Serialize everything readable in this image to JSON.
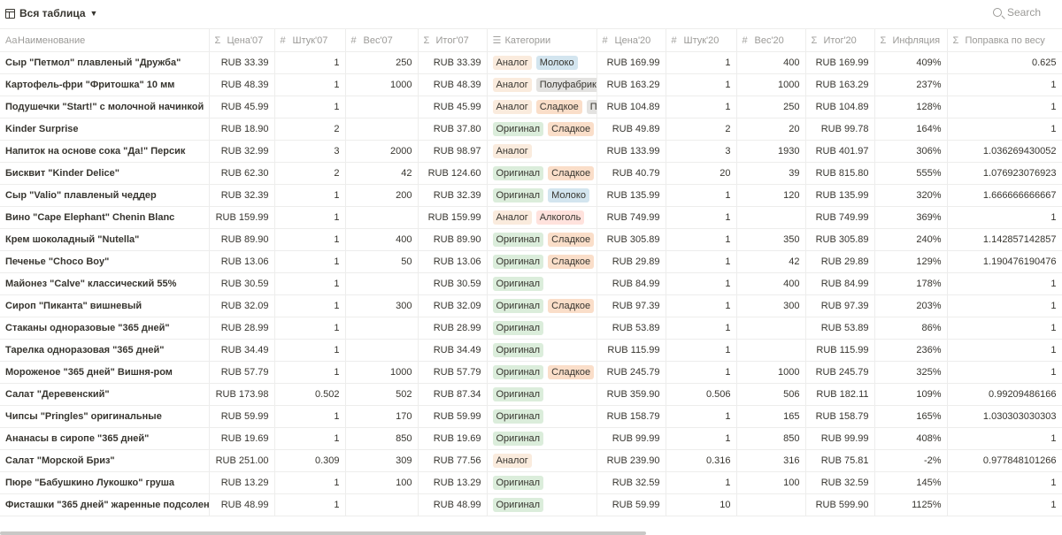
{
  "view": {
    "label": "Вся таблица"
  },
  "search": {
    "label": "Search"
  },
  "columns": [
    {
      "label": "Наименование",
      "icon": "Aa"
    },
    {
      "label": "Цена'07",
      "icon": "Σ"
    },
    {
      "label": "Штук'07",
      "icon": "#"
    },
    {
      "label": "Вес'07",
      "icon": "#"
    },
    {
      "label": "Итог'07",
      "icon": "Σ"
    },
    {
      "label": "Категории",
      "icon": "☰"
    },
    {
      "label": "Цена'20",
      "icon": "#"
    },
    {
      "label": "Штук'20",
      "icon": "#"
    },
    {
      "label": "Вес'20",
      "icon": "#"
    },
    {
      "label": "Итог'20",
      "icon": "Σ"
    },
    {
      "label": "Инфляция",
      "icon": "Σ"
    },
    {
      "label": "Поправка по весу",
      "icon": "Σ"
    }
  ],
  "rows": [
    {
      "name": "Сыр \"Петмол\" плавленый \"Дружба\"",
      "p07": "RUB 33.39",
      "q07": "1",
      "w07": "250",
      "t07": "RUB 33.39",
      "tags": [
        [
          "Аналог",
          "analog"
        ],
        [
          "Молоко",
          "milk"
        ]
      ],
      "p20": "RUB 169.99",
      "q20": "1",
      "w20": "400",
      "t20": "RUB 169.99",
      "infl": "409%",
      "adj": "0.625"
    },
    {
      "name": "Картофель-фри \"Фритошка\" 10 мм",
      "p07": "RUB 48.39",
      "q07": "1",
      "w07": "1000",
      "t07": "RUB 48.39",
      "tags": [
        [
          "Аналог",
          "analog"
        ],
        [
          "Полуфабрик",
          "semi"
        ]
      ],
      "p20": "RUB 163.29",
      "q20": "1",
      "w20": "1000",
      "t20": "RUB 163.29",
      "infl": "237%",
      "adj": "1"
    },
    {
      "name": "Подушечки \"Start!\" с молочной начинкой",
      "p07": "RUB 45.99",
      "q07": "1",
      "w07": "",
      "t07": "RUB 45.99",
      "tags": [
        [
          "Аналог",
          "analog"
        ],
        [
          "Сладкое",
          "sweet"
        ],
        [
          "П",
          "semi"
        ]
      ],
      "p20": "RUB 104.89",
      "q20": "1",
      "w20": "250",
      "t20": "RUB 104.89",
      "infl": "128%",
      "adj": "1"
    },
    {
      "name": "Kinder Surprise",
      "p07": "RUB 18.90",
      "q07": "2",
      "w07": "",
      "t07": "RUB 37.80",
      "tags": [
        [
          "Оригинал",
          "original"
        ],
        [
          "Сладкое",
          "sweet"
        ]
      ],
      "p20": "RUB 49.89",
      "q20": "2",
      "w20": "20",
      "t20": "RUB 99.78",
      "infl": "164%",
      "adj": "1"
    },
    {
      "name": "Напиток на основе сока \"Да!\" Персик",
      "p07": "RUB 32.99",
      "q07": "3",
      "w07": "2000",
      "t07": "RUB 98.97",
      "tags": [
        [
          "Аналог",
          "analog"
        ]
      ],
      "p20": "RUB 133.99",
      "q20": "3",
      "w20": "1930",
      "t20": "RUB 401.97",
      "infl": "306%",
      "adj": "1.036269430052"
    },
    {
      "name": "Бисквит \"Kinder Delice\"",
      "p07": "RUB 62.30",
      "q07": "2",
      "w07": "42",
      "t07": "RUB 124.60",
      "tags": [
        [
          "Оригинал",
          "original"
        ],
        [
          "Сладкое",
          "sweet"
        ]
      ],
      "p20": "RUB 40.79",
      "q20": "20",
      "w20": "39",
      "t20": "RUB 815.80",
      "infl": "555%",
      "adj": "1.076923076923"
    },
    {
      "name": "Сыр \"Valio\" плавленый чеддер",
      "p07": "RUB 32.39",
      "q07": "1",
      "w07": "200",
      "t07": "RUB 32.39",
      "tags": [
        [
          "Оригинал",
          "original"
        ],
        [
          "Молоко",
          "milk"
        ]
      ],
      "p20": "RUB 135.99",
      "q20": "1",
      "w20": "120",
      "t20": "RUB 135.99",
      "infl": "320%",
      "adj": "1.666666666667"
    },
    {
      "name": "Вино \"Cape Elephant\" Chenin Blanc",
      "p07": "RUB 159.99",
      "q07": "1",
      "w07": "",
      "t07": "RUB 159.99",
      "tags": [
        [
          "Аналог",
          "analog"
        ],
        [
          "Алкоголь",
          "alco"
        ]
      ],
      "p20": "RUB 749.99",
      "q20": "1",
      "w20": "",
      "t20": "RUB 749.99",
      "infl": "369%",
      "adj": "1"
    },
    {
      "name": "Крем шоколадный \"Nutella\"",
      "p07": "RUB 89.90",
      "q07": "1",
      "w07": "400",
      "t07": "RUB 89.90",
      "tags": [
        [
          "Оригинал",
          "original"
        ],
        [
          "Сладкое",
          "sweet"
        ]
      ],
      "p20": "RUB 305.89",
      "q20": "1",
      "w20": "350",
      "t20": "RUB 305.89",
      "infl": "240%",
      "adj": "1.142857142857"
    },
    {
      "name": "Печенье \"Choco Boy\"",
      "p07": "RUB 13.06",
      "q07": "1",
      "w07": "50",
      "t07": "RUB 13.06",
      "tags": [
        [
          "Оригинал",
          "original"
        ],
        [
          "Сладкое",
          "sweet"
        ]
      ],
      "p20": "RUB 29.89",
      "q20": "1",
      "w20": "42",
      "t20": "RUB 29.89",
      "infl": "129%",
      "adj": "1.190476190476"
    },
    {
      "name": "Майонез \"Calve\" классический 55%",
      "p07": "RUB 30.59",
      "q07": "1",
      "w07": "",
      "t07": "RUB 30.59",
      "tags": [
        [
          "Оригинал",
          "original"
        ]
      ],
      "p20": "RUB 84.99",
      "q20": "1",
      "w20": "400",
      "t20": "RUB 84.99",
      "infl": "178%",
      "adj": "1"
    },
    {
      "name": "Сироп \"Пиканта\" вишневый",
      "p07": "RUB 32.09",
      "q07": "1",
      "w07": "300",
      "t07": "RUB 32.09",
      "tags": [
        [
          "Оригинал",
          "original"
        ],
        [
          "Сладкое",
          "sweet"
        ]
      ],
      "p20": "RUB 97.39",
      "q20": "1",
      "w20": "300",
      "t20": "RUB 97.39",
      "infl": "203%",
      "adj": "1"
    },
    {
      "name": "Стаканы одноразовые \"365 дней\"",
      "p07": "RUB 28.99",
      "q07": "1",
      "w07": "",
      "t07": "RUB 28.99",
      "tags": [
        [
          "Оригинал",
          "original"
        ]
      ],
      "p20": "RUB 53.89",
      "q20": "1",
      "w20": "",
      "t20": "RUB 53.89",
      "infl": "86%",
      "adj": "1"
    },
    {
      "name": "Тарелка одноразовая \"365 дней\"",
      "p07": "RUB 34.49",
      "q07": "1",
      "w07": "",
      "t07": "RUB 34.49",
      "tags": [
        [
          "Оригинал",
          "original"
        ]
      ],
      "p20": "RUB 115.99",
      "q20": "1",
      "w20": "",
      "t20": "RUB 115.99",
      "infl": "236%",
      "adj": "1"
    },
    {
      "name": "Мороженое \"365 дней\" Вишня-ром",
      "p07": "RUB 57.79",
      "q07": "1",
      "w07": "1000",
      "t07": "RUB 57.79",
      "tags": [
        [
          "Оригинал",
          "original"
        ],
        [
          "Сладкое",
          "sweet"
        ]
      ],
      "p20": "RUB 245.79",
      "q20": "1",
      "w20": "1000",
      "t20": "RUB 245.79",
      "infl": "325%",
      "adj": "1"
    },
    {
      "name": "Салат \"Деревенский\"",
      "p07": "RUB 173.98",
      "q07": "0.502",
      "w07": "502",
      "t07": "RUB 87.34",
      "tags": [
        [
          "Оригинал",
          "original"
        ]
      ],
      "p20": "RUB 359.90",
      "q20": "0.506",
      "w20": "506",
      "t20": "RUB 182.11",
      "infl": "109%",
      "adj": "0.99209486166"
    },
    {
      "name": "Чипсы \"Pringles\" оригинальные",
      "p07": "RUB 59.99",
      "q07": "1",
      "w07": "170",
      "t07": "RUB 59.99",
      "tags": [
        [
          "Оригинал",
          "original"
        ]
      ],
      "p20": "RUB 158.79",
      "q20": "1",
      "w20": "165",
      "t20": "RUB 158.79",
      "infl": "165%",
      "adj": "1.030303030303"
    },
    {
      "name": "Ананасы в сиропе \"365 дней\"",
      "p07": "RUB 19.69",
      "q07": "1",
      "w07": "850",
      "t07": "RUB 19.69",
      "tags": [
        [
          "Оригинал",
          "original"
        ]
      ],
      "p20": "RUB 99.99",
      "q20": "1",
      "w20": "850",
      "t20": "RUB 99.99",
      "infl": "408%",
      "adj": "1"
    },
    {
      "name": "Салат \"Морской Бриз\"",
      "p07": "RUB 251.00",
      "q07": "0.309",
      "w07": "309",
      "t07": "RUB 77.56",
      "tags": [
        [
          "Аналог",
          "analog"
        ]
      ],
      "p20": "RUB 239.90",
      "q20": "0.316",
      "w20": "316",
      "t20": "RUB 75.81",
      "infl": "-2%",
      "adj": "0.977848101266"
    },
    {
      "name": "Пюре \"Бабушкино Лукошко\" груша",
      "p07": "RUB 13.29",
      "q07": "1",
      "w07": "100",
      "t07": "RUB 13.29",
      "tags": [
        [
          "Оригинал",
          "original"
        ]
      ],
      "p20": "RUB 32.59",
      "q20": "1",
      "w20": "100",
      "t20": "RUB 32.59",
      "infl": "145%",
      "adj": "1"
    },
    {
      "name": "Фисташки \"365 дней\" жаренные подсоленн",
      "p07": "RUB 48.99",
      "q07": "1",
      "w07": "",
      "t07": "RUB 48.99",
      "tags": [
        [
          "Оригинал",
          "original"
        ]
      ],
      "p20": "RUB 59.99",
      "q20": "10",
      "w20": "",
      "t20": "RUB 599.90",
      "infl": "1125%",
      "adj": "1"
    }
  ]
}
